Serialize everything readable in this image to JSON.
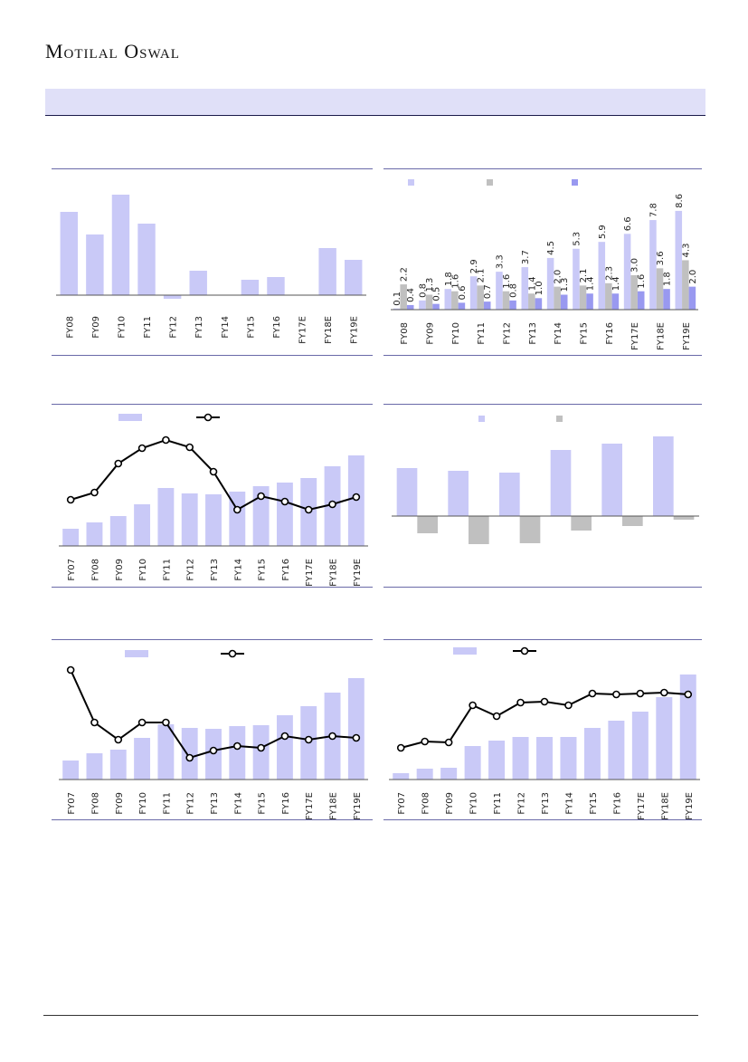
{
  "header": {
    "brand": "Motilal Oswal"
  },
  "chart_data": [
    {
      "type": "bar",
      "categories": [
        "FY08",
        "FY09",
        "FY10",
        "FY11",
        "FY12",
        "FY13",
        "FY14",
        "FY15",
        "FY16",
        "FY17E",
        "FY18E",
        "FY19E"
      ],
      "series": [
        {
          "color": "#c9c9f7",
          "values": [
            92,
            67,
            111,
            79,
            -4,
            27,
            0,
            17,
            20,
            0,
            52,
            39
          ]
        }
      ],
      "ylim": [
        -9,
        126
      ]
    },
    {
      "type": "bar",
      "categories": [
        "FY08",
        "FY09",
        "FY10",
        "FY11",
        "FY12",
        "FY13",
        "FY14",
        "FY15",
        "FY16",
        "FY17E",
        "FY18E",
        "FY19E"
      ],
      "series": [
        {
          "color": "#c9c9f7",
          "values": [
            0.1,
            0.8,
            1.8,
            2.9,
            3.3,
            3.7,
            4.5,
            5.3,
            5.9,
            6.6,
            7.8,
            8.6
          ],
          "value_labels": [
            "0.1",
            "0.8",
            "1.8",
            "2.9",
            "3.3",
            "3.7",
            "4.5",
            "5.3",
            "5.9",
            "6.6",
            "7.8",
            "8.6"
          ]
        },
        {
          "color": "#c0c0c0",
          "values": [
            2.2,
            1.3,
            1.6,
            2.1,
            1.6,
            1.4,
            2,
            2.1,
            2.3,
            3,
            3.6,
            4.3
          ],
          "value_labels": [
            "2.2",
            "1.3",
            "1.6",
            "2.1",
            "1.6",
            "1.4",
            "2.0",
            "2.1",
            "2.3",
            "3.0",
            "3.6",
            "4.3"
          ]
        },
        {
          "color": "#9999f0",
          "values": [
            0.4,
            0.5,
            0.6,
            0.7,
            0.8,
            1,
            1.3,
            1.4,
            1.4,
            1.6,
            1.8,
            2
          ],
          "value_labels": [
            "0.4",
            "0.5",
            "0.6",
            "0.7",
            "0.8",
            "1.0",
            "1.3",
            "1.4",
            "1.4",
            "1.6",
            "1.8",
            "2.0"
          ]
        }
      ],
      "ylim": [
        0,
        10.8
      ],
      "legend": true
    },
    {
      "type": "combo",
      "categories": [
        "FY07",
        "FY08",
        "FY09",
        "FY10",
        "FY11",
        "FY12",
        "FY13",
        "FY14",
        "FY15",
        "FY16",
        "FY17E",
        "FY18E",
        "FY19E"
      ],
      "series": [
        {
          "type": "bar",
          "color": "#c9c9f7",
          "values": [
            19,
            26,
            33,
            46,
            64,
            58,
            57,
            60,
            66,
            70,
            75,
            88,
            100
          ]
        },
        {
          "type": "line",
          "color": "#000000",
          "values": [
            51,
            59,
            91,
            108,
            117,
            109,
            82,
            40,
            55,
            49,
            40,
            46,
            54
          ]
        }
      ],
      "ylim": [
        0,
        125
      ],
      "legend": true
    },
    {
      "type": "bar",
      "categories": [
        null,
        null,
        null,
        null,
        null,
        null
      ],
      "series": [
        {
          "color": "#c9c9f7",
          "values": [
            53,
            50,
            48,
            73,
            80,
            88
          ]
        },
        {
          "color": "#c0c0c0",
          "values": [
            -19,
            -31,
            -30,
            -16,
            -11,
            -4
          ]
        }
      ],
      "ylim": [
        -40,
        100
      ],
      "legend": true
    },
    {
      "type": "combo",
      "categories": [
        "FY07",
        "FY08",
        "FY09",
        "FY10",
        "FY11",
        "FY12",
        "FY13",
        "FY14",
        "FY15",
        "FY16",
        "FY17E",
        "FY18E",
        "FY19E"
      ],
      "series": [
        {
          "type": "bar",
          "color": "#c9c9f7",
          "values": [
            21,
            29,
            33,
            46,
            61,
            57,
            56,
            59,
            60,
            71,
            81,
            96,
            112
          ]
        },
        {
          "type": "line",
          "color": "#000000",
          "values": [
            121,
            63,
            44,
            63,
            63,
            24,
            32,
            37,
            35,
            48,
            44,
            48,
            46
          ]
        }
      ],
      "ylim": [
        0,
        125
      ],
      "legend": true
    },
    {
      "type": "combo",
      "categories": [
        "FY07",
        "FY08",
        "FY09",
        "FY10",
        "FY11",
        "FY12",
        "FY13",
        "FY14",
        "FY15",
        "FY16",
        "FY17E",
        "FY18E",
        "FY19E"
      ],
      "series": [
        {
          "type": "bar",
          "color": "#c9c9f7",
          "values": [
            7,
            12,
            13,
            37,
            43,
            47,
            47,
            47,
            57,
            65,
            75,
            91,
            116
          ]
        },
        {
          "type": "line",
          "color": "#000000",
          "values": [
            35,
            42,
            41,
            82,
            70,
            85,
            86,
            82,
            95,
            94,
            95,
            96,
            94
          ]
        }
      ],
      "ylim": [
        0,
        125
      ],
      "legend": true
    }
  ]
}
